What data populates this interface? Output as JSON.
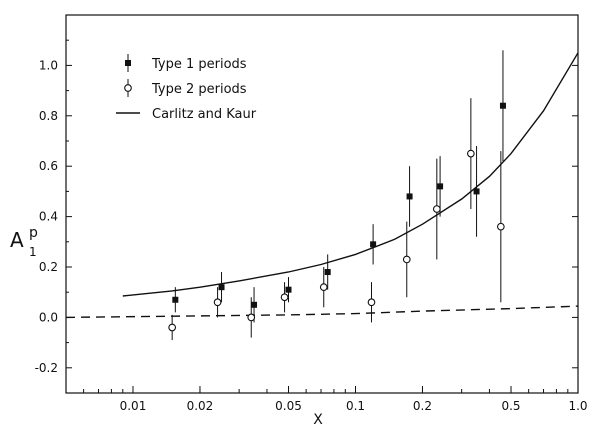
{
  "chart_data": {
    "type": "scatter",
    "x_scale": "log",
    "xlim": [
      0.005,
      1.0
    ],
    "ylim": [
      -0.3,
      1.2
    ],
    "xlabel": "X",
    "ylabel_main": "A",
    "ylabel_sup": "p",
    "ylabel_sub": "1",
    "x_ticks": [
      {
        "value": 0.01,
        "label": "0.01"
      },
      {
        "value": 0.02,
        "label": "0.02"
      },
      {
        "value": 0.05,
        "label": "0.05"
      },
      {
        "value": 0.1,
        "label": "0.1"
      },
      {
        "value": 0.2,
        "label": "0.2"
      },
      {
        "value": 0.5,
        "label": "0.5"
      },
      {
        "value": 1.0,
        "label": "1.0"
      }
    ],
    "y_ticks": [
      {
        "value": -0.2,
        "label": "-0.2"
      },
      {
        "value": 0.0,
        "label": "0.0"
      },
      {
        "value": 0.2,
        "label": "0.2"
      },
      {
        "value": 0.4,
        "label": "0.4"
      },
      {
        "value": 0.6,
        "label": "0.6"
      },
      {
        "value": 0.8,
        "label": "0.8"
      },
      {
        "value": 1.0,
        "label": "1.0"
      }
    ],
    "legend_position": "top-left",
    "series": [
      {
        "name": "Type 1 periods",
        "marker": "filled-square",
        "color": "#111111",
        "points": [
          {
            "x": 0.0155,
            "y": 0.07,
            "err": 0.05
          },
          {
            "x": 0.025,
            "y": 0.12,
            "err": 0.06
          },
          {
            "x": 0.035,
            "y": 0.05,
            "err": 0.07
          },
          {
            "x": 0.05,
            "y": 0.11,
            "err": 0.05
          },
          {
            "x": 0.075,
            "y": 0.18,
            "err": 0.07
          },
          {
            "x": 0.12,
            "y": 0.29,
            "err": 0.08
          },
          {
            "x": 0.175,
            "y": 0.48,
            "err": 0.12
          },
          {
            "x": 0.24,
            "y": 0.52,
            "err": 0.12
          },
          {
            "x": 0.35,
            "y": 0.5,
            "err": 0.18
          },
          {
            "x": 0.46,
            "y": 0.84,
            "err": 0.22
          }
        ]
      },
      {
        "name": "Type 2 periods",
        "marker": "open-circle",
        "color": "#111111",
        "points": [
          {
            "x": 0.015,
            "y": -0.04,
            "err": 0.05
          },
          {
            "x": 0.024,
            "y": 0.06,
            "err": 0.06
          },
          {
            "x": 0.034,
            "y": 0.0,
            "err": 0.08
          },
          {
            "x": 0.048,
            "y": 0.08,
            "err": 0.06
          },
          {
            "x": 0.072,
            "y": 0.12,
            "err": 0.08
          },
          {
            "x": 0.118,
            "y": 0.06,
            "err": 0.08
          },
          {
            "x": 0.17,
            "y": 0.23,
            "err": 0.15
          },
          {
            "x": 0.232,
            "y": 0.43,
            "err": 0.2
          },
          {
            "x": 0.33,
            "y": 0.65,
            "err": 0.22
          },
          {
            "x": 0.45,
            "y": 0.36,
            "err": 0.3
          }
        ]
      },
      {
        "name": "Carlitz and Kaur",
        "marker": "solid-line",
        "color": "#111111",
        "points": [
          {
            "x": 0.009,
            "y": 0.085
          },
          {
            "x": 0.015,
            "y": 0.105
          },
          {
            "x": 0.02,
            "y": 0.12
          },
          {
            "x": 0.03,
            "y": 0.145
          },
          {
            "x": 0.05,
            "y": 0.18
          },
          {
            "x": 0.07,
            "y": 0.21
          },
          {
            "x": 0.1,
            "y": 0.25
          },
          {
            "x": 0.15,
            "y": 0.31
          },
          {
            "x": 0.2,
            "y": 0.37
          },
          {
            "x": 0.3,
            "y": 0.47
          },
          {
            "x": 0.4,
            "y": 0.56
          },
          {
            "x": 0.5,
            "y": 0.65
          },
          {
            "x": 0.7,
            "y": 0.82
          },
          {
            "x": 1.0,
            "y": 1.05
          }
        ]
      },
      {
        "marker": "dashed-line",
        "color": "#111111",
        "points": [
          {
            "x": 0.005,
            "y": 0.0
          },
          {
            "x": 0.05,
            "y": 0.01
          },
          {
            "x": 0.1,
            "y": 0.015
          },
          {
            "x": 0.2,
            "y": 0.025
          },
          {
            "x": 0.5,
            "y": 0.035
          },
          {
            "x": 1.0,
            "y": 0.045
          }
        ]
      }
    ]
  }
}
